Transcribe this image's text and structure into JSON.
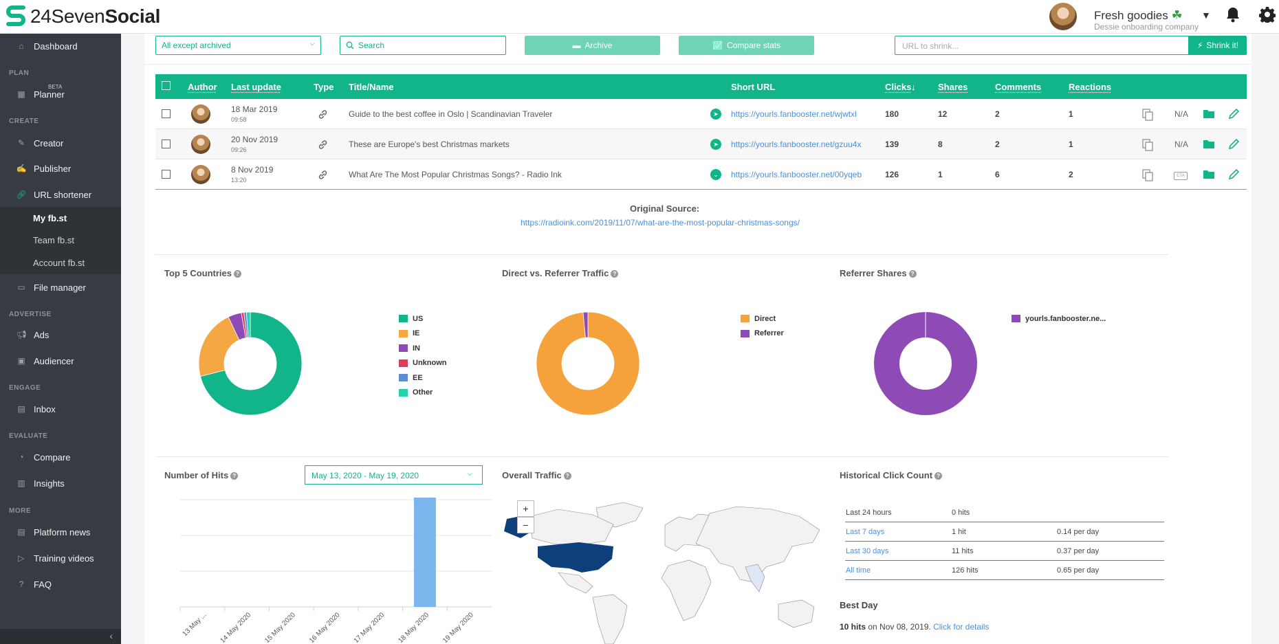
{
  "brand": {
    "logo_light": "24Seven",
    "logo_bold": "Social"
  },
  "account": {
    "name": "Fresh goodies",
    "company": "Dessie onboarding company"
  },
  "sidebar": {
    "dashboard": "Dashboard",
    "sections": {
      "plan": "PLAN",
      "create": "CREATE",
      "advertise": "ADVERTISE",
      "engage": "ENGAGE",
      "evaluate": "EVALUATE",
      "more": "MORE"
    },
    "planner": "Planner",
    "beta": "BETA",
    "creator": "Creator",
    "publisher": "Publisher",
    "url_shortener": "URL shortener",
    "sub": {
      "my": "My fb.st",
      "team": "Team fb.st",
      "account": "Account fb.st"
    },
    "file_manager": "File manager",
    "ads": "Ads",
    "audiencer": "Audiencer",
    "inbox": "Inbox",
    "compare": "Compare",
    "insights": "Insights",
    "platform_news": "Platform news",
    "training_videos": "Training videos",
    "faq": "FAQ"
  },
  "toolbar": {
    "filter_value": "All except archived",
    "search_placeholder": "Search",
    "archive_label": "Archive",
    "compare_label": "Compare stats",
    "url_placeholder": "URL to shrink...",
    "shrink_label": "Shrink it!"
  },
  "table": {
    "headers": {
      "author": "Author",
      "last_update": "Last update",
      "type": "Type",
      "title": "Title/Name",
      "short_url": "Short URL",
      "clicks": "Clicks",
      "sort_arrow": "↓",
      "shares": "Shares",
      "comments": "Comments",
      "reactions": "Reactions"
    },
    "rows": [
      {
        "date": "18 Mar 2019",
        "time": "09:58",
        "title": "Guide to the best coffee in Oslo | Scandinavian Traveler",
        "short": "https://yourls.fanbooster.net/wjwtxl",
        "clicks": "180",
        "shares": "12",
        "comments": "2",
        "reactions": "1",
        "cta": "N/A"
      },
      {
        "date": "20 Nov 2019",
        "time": "09:26",
        "title": "These are Europe's best Christmas markets",
        "short": "https://yourls.fanbooster.net/gzuu4x",
        "clicks": "139",
        "shares": "8",
        "comments": "2",
        "reactions": "1",
        "cta": "N/A"
      },
      {
        "date": "8 Nov 2019",
        "time": "13:20",
        "title": "What Are The Most Popular Christmas Songs? - Radio Ink",
        "short": "https://yourls.fanbooster.net/00yqeb",
        "clicks": "126",
        "shares": "1",
        "comments": "6",
        "reactions": "2",
        "cta": "CTA"
      }
    ],
    "original_source_label": "Original Source:",
    "original_source_url": "https://radioink.com/2019/11/07/what-are-the-most-popular-christmas-songs/"
  },
  "panels": {
    "countries_title": "Top 5 Countries",
    "traffic_title": "Direct vs. Referrer Traffic",
    "referrer_title": "Referrer Shares",
    "hits_title": "Number of Hits",
    "date_range": "May 13, 2020 - May 19, 2020",
    "overall_title": "Overall Traffic",
    "historical_title": "Historical Click Count",
    "zoom_in": "+",
    "zoom_out": "−",
    "help": "?"
  },
  "history": [
    {
      "period": "Last 24 hours",
      "hits": "0 hits",
      "per_day": ""
    },
    {
      "period": "Last 7 days",
      "hits": "1 hit",
      "per_day": "0.14 per day"
    },
    {
      "period": "Last 30 days",
      "hits": "11 hits",
      "per_day": "0.37 per day"
    },
    {
      "period": "All time",
      "hits": "126 hits",
      "per_day": "0.65 per day"
    }
  ],
  "best_day": {
    "label": "Best Day",
    "hits": "10 hits",
    "middle": " on Nov 08, 2019. ",
    "link": "Click for details"
  },
  "colors": {
    "accent": "#12b48a",
    "us": "#12b48a",
    "ie": "#f4a742",
    "in": "#8e4bb5",
    "unknown": "#e03c5a",
    "ee": "#5b8fcf",
    "other": "#22d3b0",
    "direct": "#f6a23c",
    "referrer": "#8e4bb5",
    "bar": "#7db6ec",
    "map_us": "#0d3f7a"
  },
  "chart_data": [
    {
      "type": "pie",
      "labels": [
        "US",
        "IE",
        "IN",
        "Unknown",
        "EE",
        "Other"
      ],
      "values": [
        71,
        22,
        4.2,
        0.8,
        0.8,
        1.2
      ]
    },
    {
      "type": "pie",
      "labels": [
        "Direct",
        "Referrer"
      ],
      "values": [
        98.5,
        1.5
      ]
    },
    {
      "type": "pie",
      "labels": [
        "yourls.fanbooster.ne..."
      ],
      "values": [
        100
      ]
    },
    {
      "type": "bar",
      "categories": [
        "13 May ...",
        "14 May 2020",
        "15 May 2020",
        "16 May 2020",
        "17 May 2020",
        "18 May 2020",
        "19 May 2020"
      ],
      "values": [
        0,
        0,
        0,
        0,
        0,
        1,
        0
      ],
      "grid": true
    }
  ]
}
